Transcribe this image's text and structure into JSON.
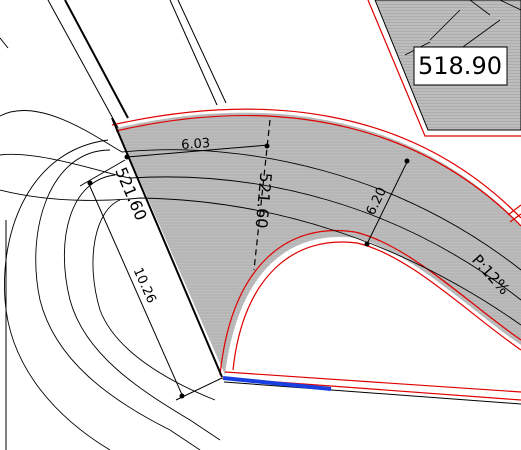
{
  "labels": {
    "elevation_box": "518.90",
    "elevation_ramp_left": "521.60",
    "elevation_ramp_mid": "521.60",
    "width_top": "6.03",
    "width_right": "6.20",
    "length_left": "10.26",
    "slope": "P:12%"
  },
  "colors": {
    "paving_fill": "#b7b7b7",
    "curb_red": "#e00000",
    "highlight_blue": "#1a3fe0",
    "line_black": "#000000"
  }
}
